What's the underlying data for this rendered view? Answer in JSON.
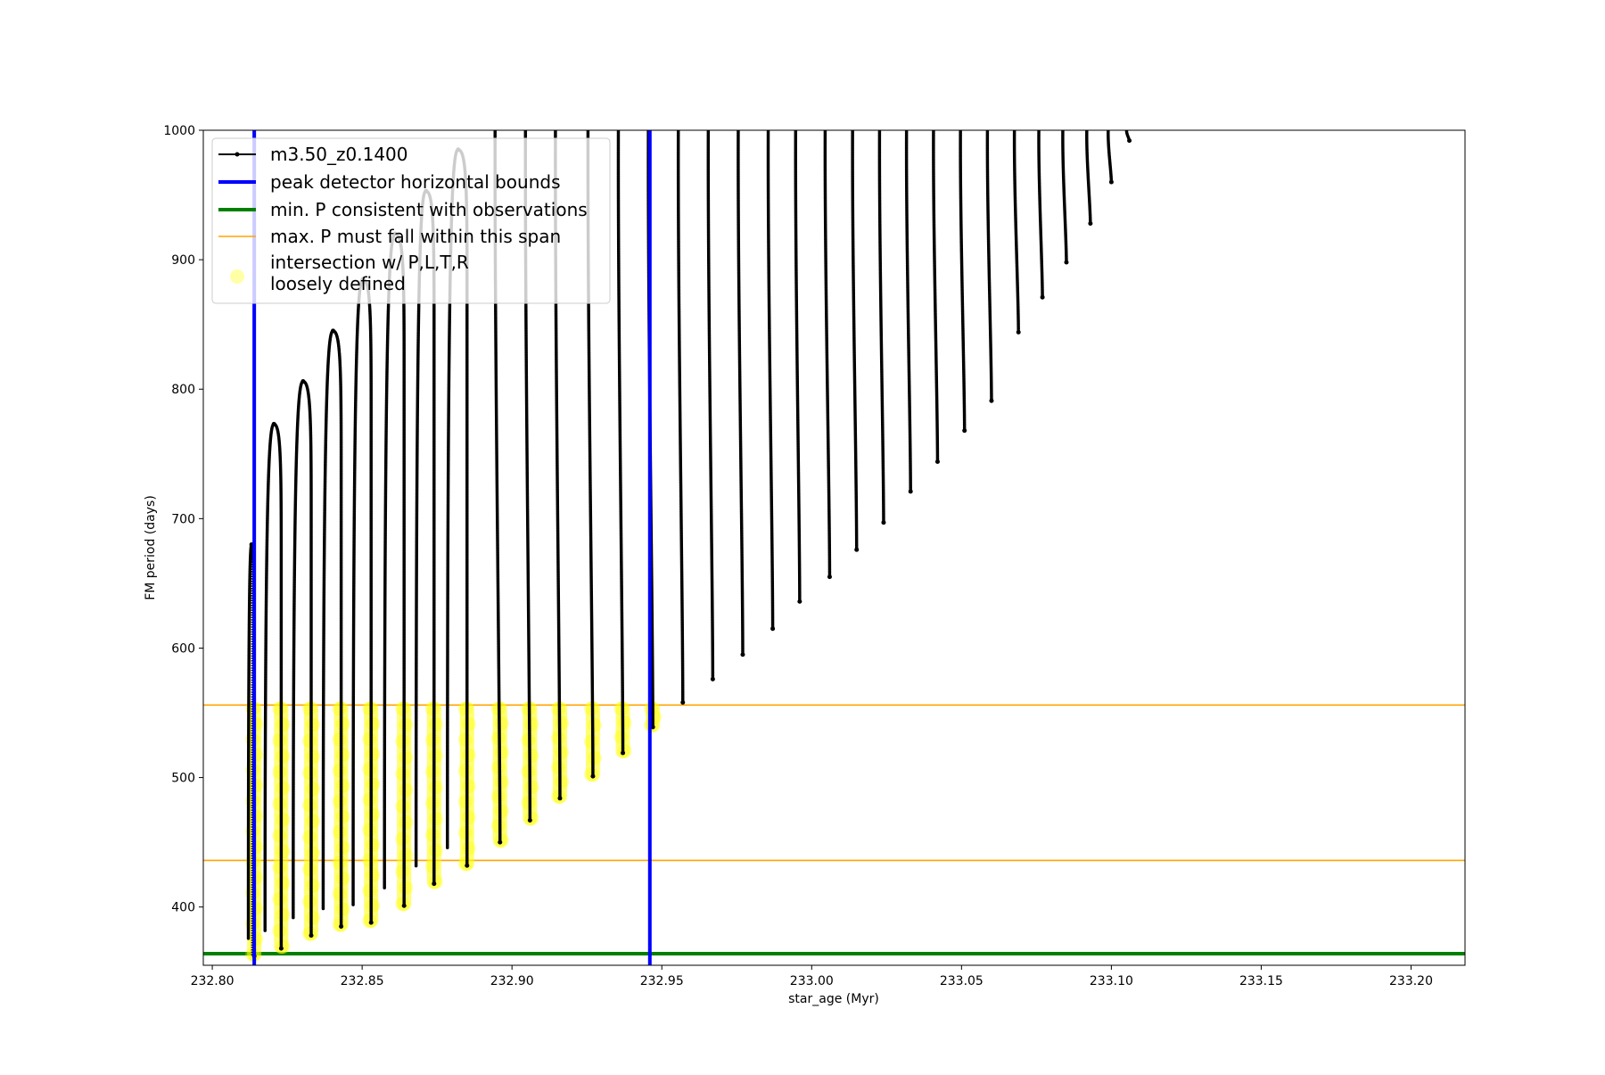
{
  "chart_data": {
    "type": "line",
    "xlabel": "star_age (Myr)",
    "ylabel": "FM period (days)",
    "xlim": [
      232.797,
      233.218
    ],
    "ylim": [
      355,
      1000
    ],
    "xticks": [
      232.8,
      232.85,
      232.9,
      232.95,
      233.0,
      233.05,
      233.1,
      233.15,
      233.2
    ],
    "xtick_labels": [
      "232.80",
      "232.85",
      "232.90",
      "232.95",
      "233.00",
      "233.05",
      "233.10",
      "233.15",
      "233.20"
    ],
    "yticks": [
      400,
      500,
      600,
      700,
      800,
      900,
      1000
    ],
    "ytick_labels": [
      "400",
      "500",
      "600",
      "700",
      "800",
      "900",
      "1000"
    ],
    "grid": false,
    "legend_position": "top-left",
    "series": [
      {
        "name": "m3.50_z0.1400",
        "color": "#000000",
        "style": "line-with-dots",
        "pulses": [
          {
            "x": 232.814,
            "min": 362,
            "max": 680
          },
          {
            "x": 232.823,
            "min": 368,
            "max": 773
          },
          {
            "x": 232.833,
            "min": 378,
            "max": 806
          },
          {
            "x": 232.843,
            "min": 385,
            "max": 845
          },
          {
            "x": 232.853,
            "min": 388,
            "max": 885
          },
          {
            "x": 232.864,
            "min": 401,
            "max": 920
          },
          {
            "x": 232.874,
            "min": 418,
            "max": 953
          },
          {
            "x": 232.885,
            "min": 432,
            "max": 985
          },
          {
            "x": 232.896,
            "min": 450,
            "max": 1000
          },
          {
            "x": 232.906,
            "min": 467,
            "max": 1000
          },
          {
            "x": 232.916,
            "min": 484,
            "max": 1000
          },
          {
            "x": 232.927,
            "min": 501,
            "max": 1000
          },
          {
            "x": 232.937,
            "min": 519,
            "max": 1000
          },
          {
            "x": 232.947,
            "min": 539,
            "max": 1000
          },
          {
            "x": 232.957,
            "min": 558,
            "max": 1000
          },
          {
            "x": 232.967,
            "min": 576,
            "max": 1000
          },
          {
            "x": 232.977,
            "min": 595,
            "max": 1000
          },
          {
            "x": 232.987,
            "min": 615,
            "max": 1000
          },
          {
            "x": 232.996,
            "min": 636,
            "max": 1000
          },
          {
            "x": 233.006,
            "min": 655,
            "max": 1000
          },
          {
            "x": 233.015,
            "min": 676,
            "max": 1000
          },
          {
            "x": 233.024,
            "min": 697,
            "max": 1000
          },
          {
            "x": 233.033,
            "min": 721,
            "max": 1000
          },
          {
            "x": 233.042,
            "min": 744,
            "max": 1000
          },
          {
            "x": 233.051,
            "min": 768,
            "max": 1000
          },
          {
            "x": 233.06,
            "min": 791,
            "max": 1000
          },
          {
            "x": 233.069,
            "min": 844,
            "max": 1000
          },
          {
            "x": 233.077,
            "min": 871,
            "max": 1000
          },
          {
            "x": 233.085,
            "min": 898,
            "max": 1000
          },
          {
            "x": 233.093,
            "min": 928,
            "max": 1000
          },
          {
            "x": 233.1,
            "min": 960,
            "max": 1000
          },
          {
            "x": 233.106,
            "min": 992,
            "max": 1000
          }
        ]
      },
      {
        "name": "peak detector horizontal bounds",
        "color": "#0000ff",
        "style": "vline",
        "x": [
          232.814,
          232.946
        ]
      },
      {
        "name": "min. P consistent with observations",
        "color": "#008000",
        "style": "hline",
        "y": 364
      },
      {
        "name": "max. P must fall within this span",
        "color": "#ffa500",
        "style": "hline",
        "y": [
          436,
          556
        ]
      },
      {
        "name": "intersection w/ P,L,T,R\nloosely defined",
        "color": "#ffff00",
        "style": "markers",
        "pulse_count": 14,
        "upper": 556
      }
    ]
  }
}
